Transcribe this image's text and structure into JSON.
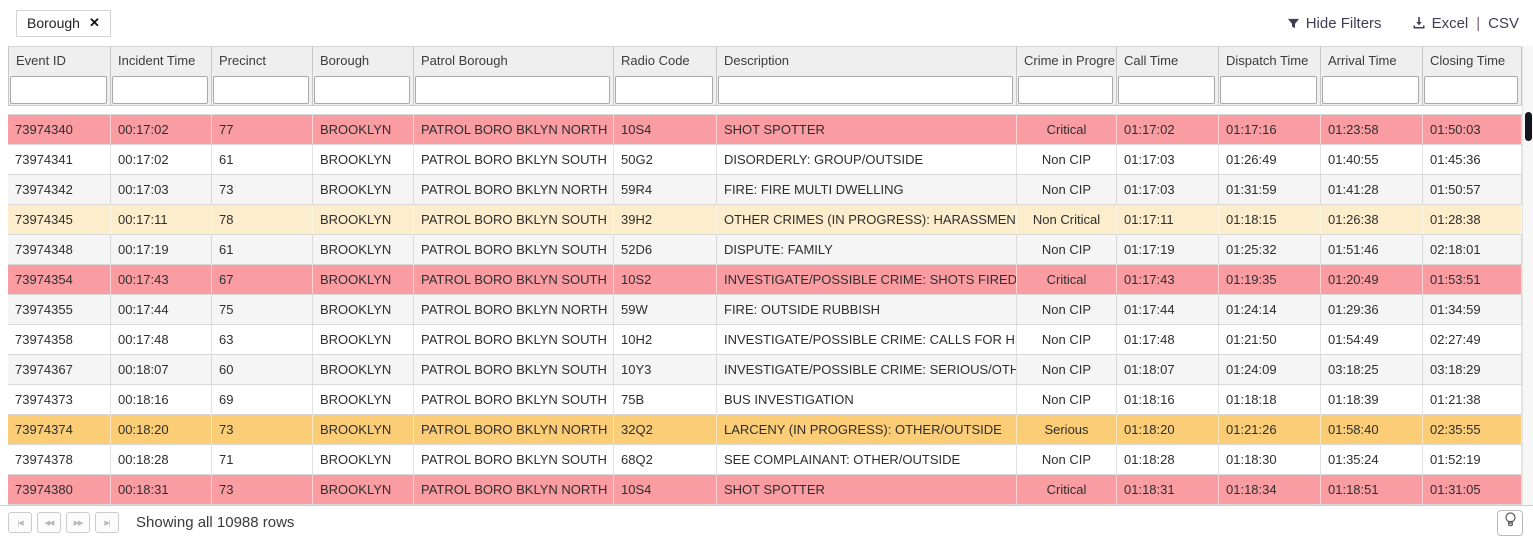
{
  "toolbar": {
    "filter_chip": {
      "label": "Borough",
      "close_glyph": "✕"
    },
    "hide_filters_label": "Hide Filters",
    "excel_label": "Excel",
    "pipe": "|",
    "csv_label": "CSV"
  },
  "colors": {
    "critical": "#fa9da3",
    "serious": "#fbcd76",
    "non_critical": "#fceecd",
    "link_text": "#3f3e53"
  },
  "table": {
    "columns": [
      {
        "label": "Event ID",
        "filter_value": ""
      },
      {
        "label": "Incident Time",
        "filter_value": ""
      },
      {
        "label": "Precinct",
        "filter_value": ""
      },
      {
        "label": "Borough",
        "filter_value": ""
      },
      {
        "label": "Patrol Borough",
        "filter_value": ""
      },
      {
        "label": "Radio Code",
        "filter_value": ""
      },
      {
        "label": "Description",
        "filter_value": ""
      },
      {
        "label": "Crime in Progre...",
        "filter_value": ""
      },
      {
        "label": "Call Time",
        "filter_value": ""
      },
      {
        "label": "Dispatch Time",
        "filter_value": ""
      },
      {
        "label": "Arrival Time",
        "filter_value": ""
      },
      {
        "label": "Closing Time",
        "filter_value": ""
      }
    ],
    "rows": [
      {
        "severity": "critical",
        "cells": [
          "73974340",
          "00:17:02",
          "77",
          "BROOKLYN",
          "PATROL BORO BKLYN NORTH",
          "10S4",
          "SHOT SPOTTER",
          "Critical",
          "01:17:02",
          "01:17:16",
          "01:23:58",
          "01:50:03"
        ]
      },
      {
        "severity": null,
        "cells": [
          "73974341",
          "00:17:02",
          "61",
          "BROOKLYN",
          "PATROL BORO BKLYN SOUTH",
          "50G2",
          "DISORDERLY: GROUP/OUTSIDE",
          "Non CIP",
          "01:17:03",
          "01:26:49",
          "01:40:55",
          "01:45:36"
        ]
      },
      {
        "severity": null,
        "cells": [
          "73974342",
          "00:17:03",
          "73",
          "BROOKLYN",
          "PATROL BORO BKLYN NORTH",
          "59R4",
          "FIRE: FIRE MULTI DWELLING",
          "Non CIP",
          "01:17:03",
          "01:31:59",
          "01:41:28",
          "01:50:57"
        ]
      },
      {
        "severity": "non_critical",
        "cells": [
          "73974345",
          "00:17:11",
          "78",
          "BROOKLYN",
          "PATROL BORO BKLYN SOUTH",
          "39H2",
          "OTHER CRIMES (IN PROGRESS): HARASSMENT/OUT",
          "Non Critical",
          "01:17:11",
          "01:18:15",
          "01:26:38",
          "01:28:38"
        ]
      },
      {
        "severity": null,
        "cells": [
          "73974348",
          "00:17:19",
          "61",
          "BROOKLYN",
          "PATROL BORO BKLYN SOUTH",
          "52D6",
          "DISPUTE: FAMILY",
          "Non CIP",
          "01:17:19",
          "01:25:32",
          "01:51:46",
          "02:18:01"
        ]
      },
      {
        "severity": "critical",
        "cells": [
          "73974354",
          "00:17:43",
          "67",
          "BROOKLYN",
          "PATROL BORO BKLYN SOUTH",
          "10S2",
          "INVESTIGATE/POSSIBLE CRIME: SHOTS FIRED/OUTS",
          "Critical",
          "01:17:43",
          "01:19:35",
          "01:20:49",
          "01:53:51"
        ]
      },
      {
        "severity": null,
        "cells": [
          "73974355",
          "00:17:44",
          "75",
          "BROOKLYN",
          "PATROL BORO BKLYN NORTH",
          "59W",
          "FIRE: OUTSIDE RUBBISH",
          "Non CIP",
          "01:17:44",
          "01:24:14",
          "01:29:36",
          "01:34:59"
        ]
      },
      {
        "severity": null,
        "cells": [
          "73974358",
          "00:17:48",
          "63",
          "BROOKLYN",
          "PATROL BORO BKLYN SOUTH",
          "10H2",
          "INVESTIGATE/POSSIBLE CRIME: CALLS FOR HELP/OU",
          "Non CIP",
          "01:17:48",
          "01:21:50",
          "01:54:49",
          "02:27:49"
        ]
      },
      {
        "severity": null,
        "cells": [
          "73974367",
          "00:18:07",
          "60",
          "BROOKLYN",
          "PATROL BORO BKLYN SOUTH",
          "10Y3",
          "INVESTIGATE/POSSIBLE CRIME: SERIOUS/OTHER",
          "Non CIP",
          "01:18:07",
          "01:24:09",
          "03:18:25",
          "03:18:29"
        ]
      },
      {
        "severity": null,
        "cells": [
          "73974373",
          "00:18:16",
          "69",
          "BROOKLYN",
          "PATROL BORO BKLYN SOUTH",
          "75B",
          "BUS INVESTIGATION",
          "Non CIP",
          "01:18:16",
          "01:18:18",
          "01:18:39",
          "01:21:38"
        ]
      },
      {
        "severity": "serious",
        "cells": [
          "73974374",
          "00:18:20",
          "73",
          "BROOKLYN",
          "PATROL BORO BKLYN NORTH",
          "32Q2",
          "LARCENY (IN PROGRESS): OTHER/OUTSIDE",
          "Serious",
          "01:18:20",
          "01:21:26",
          "01:58:40",
          "02:35:55"
        ]
      },
      {
        "severity": null,
        "cells": [
          "73974378",
          "00:18:28",
          "71",
          "BROOKLYN",
          "PATROL BORO BKLYN SOUTH",
          "68Q2",
          "SEE COMPLAINANT: OTHER/OUTSIDE",
          "Non CIP",
          "01:18:28",
          "01:18:30",
          "01:35:24",
          "01:52:19"
        ]
      },
      {
        "severity": "critical",
        "cells": [
          "73974380",
          "00:18:31",
          "73",
          "BROOKLYN",
          "PATROL BORO BKLYN NORTH",
          "10S4",
          "SHOT SPOTTER",
          "Critical",
          "01:18:31",
          "01:18:34",
          "01:18:51",
          "01:31:05"
        ]
      }
    ]
  },
  "footer": {
    "showing_text": "Showing all 10988 rows",
    "pagination": [
      {
        "name": "first-page",
        "glyph": "|◀"
      },
      {
        "name": "previous-page",
        "glyph": "◀◀"
      },
      {
        "name": "next-page",
        "glyph": "▶▶"
      },
      {
        "name": "last-page",
        "glyph": "▶|"
      }
    ]
  }
}
